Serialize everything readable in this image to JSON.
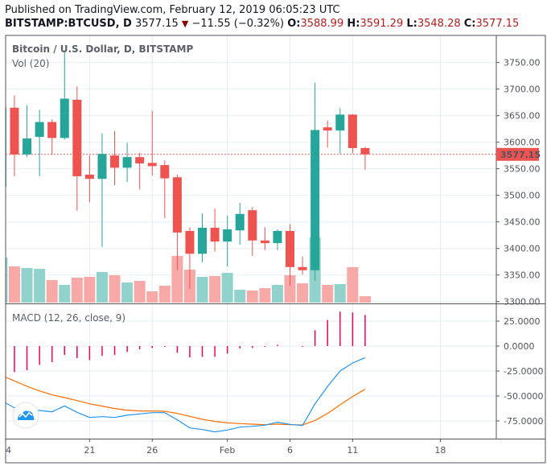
{
  "header": {
    "published": "Published on TradingView.com, February 12, 2019 06:05:23 UTC",
    "symbol": "BITSTAMP:BTCUSD, D",
    "last": "3577.15",
    "change": "−11.55 (−0.32%)",
    "open_label": "O:",
    "open": "3588.99",
    "high_label": "H:",
    "high": "3591.29",
    "low_label": "L:",
    "low": "3548.28",
    "close_label": "C:",
    "close": "3577.15",
    "direction_icon": "down-triangle-icon"
  },
  "price_pane": {
    "title": "Bitcoin / U.S. Dollar, D, BITSTAMP",
    "volume_label": "Vol (20)",
    "last_price_tag": "3577.15",
    "axis_ticks": [
      "3750.00",
      "3700.00",
      "3650.00",
      "3600.00",
      "3550.00",
      "3500.00",
      "3450.00",
      "3400.00",
      "3350.00",
      "3300.00"
    ]
  },
  "macd_pane": {
    "title": "MACD (12, 26, close, 9)",
    "axis_ticks": [
      "25.0000",
      "0.0000",
      "-25.0000",
      "-50.0000",
      "-75.0000"
    ]
  },
  "time_axis": [
    "4",
    "21",
    "26",
    "Feb",
    "6",
    "11",
    "18"
  ],
  "colors": {
    "up": "#26a69a",
    "down": "#ef5350",
    "up_vol": "#92d2cc",
    "down_vol": "#f7a9a7",
    "macd": "#2196f3",
    "signal": "#ff6d00",
    "histogram": "#f50057",
    "grid": "#e6edf3"
  },
  "chart_data": {
    "type": "candlestick",
    "title": "Bitcoin / U.S. Dollar, D, BITSTAMP",
    "ylim": [
      3300,
      3800
    ],
    "candles": [
      {
        "o": 3516,
        "h": 3670,
        "l": 3516,
        "c": 3665
      },
      {
        "o": 3665,
        "h": 3688,
        "l": 3536,
        "c": 3577
      },
      {
        "o": 3577,
        "h": 3670,
        "l": 3572,
        "c": 3607
      },
      {
        "o": 3610,
        "h": 3661,
        "l": 3536,
        "c": 3638
      },
      {
        "o": 3638,
        "h": 3643,
        "l": 3576,
        "c": 3608
      },
      {
        "o": 3608,
        "h": 3773,
        "l": 3605,
        "c": 3682
      },
      {
        "o": 3680,
        "h": 3705,
        "l": 3471,
        "c": 3536
      },
      {
        "o": 3539,
        "h": 3575,
        "l": 3487,
        "c": 3531
      },
      {
        "o": 3531,
        "h": 3617,
        "l": 3403,
        "c": 3578
      },
      {
        "o": 3575,
        "h": 3621,
        "l": 3519,
        "c": 3552
      },
      {
        "o": 3552,
        "h": 3599,
        "l": 3525,
        "c": 3572
      },
      {
        "o": 3572,
        "h": 3580,
        "l": 3511,
        "c": 3560
      },
      {
        "o": 3561,
        "h": 3659,
        "l": 3537,
        "c": 3555
      },
      {
        "o": 3557,
        "h": 3566,
        "l": 3457,
        "c": 3532
      },
      {
        "o": 3534,
        "h": 3539,
        "l": 3359,
        "c": 3430
      },
      {
        "o": 3433,
        "h": 3440,
        "l": 3324,
        "c": 3390
      },
      {
        "o": 3390,
        "h": 3466,
        "l": 3374,
        "c": 3439
      },
      {
        "o": 3439,
        "h": 3475,
        "l": 3394,
        "c": 3413
      },
      {
        "o": 3413,
        "h": 3462,
        "l": 3366,
        "c": 3436
      },
      {
        "o": 3434,
        "h": 3486,
        "l": 3407,
        "c": 3465
      },
      {
        "o": 3472,
        "h": 3478,
        "l": 3386,
        "c": 3415
      },
      {
        "o": 3415,
        "h": 3440,
        "l": 3397,
        "c": 3410
      },
      {
        "o": 3410,
        "h": 3436,
        "l": 3397,
        "c": 3433
      },
      {
        "o": 3433,
        "h": 3446,
        "l": 3330,
        "c": 3365
      },
      {
        "o": 3365,
        "h": 3385,
        "l": 3351,
        "c": 3359
      },
      {
        "o": 3359,
        "h": 3712,
        "l": 3339,
        "c": 3623
      },
      {
        "o": 3628,
        "h": 3641,
        "l": 3590,
        "c": 3622
      },
      {
        "o": 3622,
        "h": 3664,
        "l": 3578,
        "c": 3652
      },
      {
        "o": 3652,
        "h": 3653,
        "l": 3579,
        "c": 3589
      },
      {
        "o": 3588.99,
        "h": 3591.29,
        "l": 3548.28,
        "c": 3577.15
      }
    ],
    "volume_relative": [
      56,
      45,
      43,
      42,
      28,
      22,
      31,
      32,
      38,
      34,
      25,
      27,
      14,
      21,
      58,
      41,
      32,
      33,
      37,
      16,
      15,
      18,
      22,
      34,
      24,
      81,
      22,
      23,
      44,
      8
    ],
    "macd": {
      "ylim": [
        -90,
        40
      ],
      "macd": [
        -55.1,
        -61.8,
        -64,
        -64.5,
        -65.9,
        -59.9,
        -66.4,
        -71.5,
        -70.7,
        -71.5,
        -69.3,
        -68,
        -66.7,
        -66.7,
        -73.9,
        -82,
        -83.6,
        -86,
        -84.1,
        -81.2,
        -80.4,
        -79.3,
        -76.3,
        -78.5,
        -79.6,
        -57.8,
        -40.6,
        -25,
        -16.9,
        -11.6
      ],
      "signal": [
        -29.6,
        -34.9,
        -40.3,
        -44.9,
        -48.9,
        -51.6,
        -54.6,
        -57.8,
        -60.2,
        -62.6,
        -64.2,
        -65,
        -65,
        -65.3,
        -67.5,
        -70.4,
        -73.4,
        -75.5,
        -76.9,
        -77.7,
        -78.2,
        -78.8,
        -78.2,
        -78.8,
        -79,
        -74.5,
        -67.5,
        -58.9,
        -50.5,
        -43.3
      ],
      "histogram": [
        null,
        -26.1,
        -24.2,
        -18.8,
        -16.1,
        -8.9,
        -12.1,
        -14,
        -9.7,
        -8.9,
        -5.9,
        -3.2,
        -1.9,
        -0.8,
        -6.7,
        -11.3,
        -10.8,
        -10.8,
        -7.5,
        -2.4,
        -1.9,
        -0.8,
        1.3,
        0,
        -0.8,
        15.9,
        26.1,
        34.4,
        33.6,
        31.2
      ]
    }
  }
}
